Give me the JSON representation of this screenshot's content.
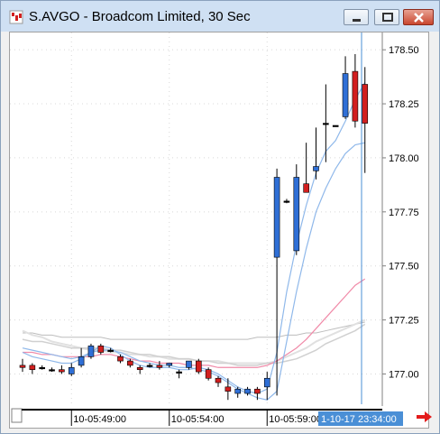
{
  "window": {
    "title": "S.AVGO - Broadcom Limited, 30 Sec",
    "minimize": "minimize",
    "restore": "restore",
    "close": "close"
  },
  "chart_data": {
    "type": "candlestick",
    "title": "S.AVGO - Broadcom Limited, 30 Sec",
    "y_ticks": [
      "178.50",
      "178.25",
      "178.00",
      "177.75",
      "177.50",
      "177.25",
      "177.00"
    ],
    "y_tick_values": [
      178.5,
      178.25,
      178.0,
      177.75,
      177.5,
      177.25,
      177.0
    ],
    "ylim": [
      176.86,
      178.58
    ],
    "x_ticks": [
      "10-05:49:00",
      "10-05:54:00",
      "10-05:59:00"
    ],
    "x_tick_index": [
      5,
      15,
      25
    ],
    "cursor_label": "1-10-17 23:34:00",
    "grid": true,
    "colors": {
      "up": "#2f6fd6",
      "down": "#d21f1f",
      "flat": "#000000",
      "ma_light_blue": "#8fb8ea",
      "ma_pink": "#f08aa8",
      "ma_gray": "#bdbdbd",
      "cursor": "#4a8fd6",
      "cursor_label_bg": "#4a8fd6"
    },
    "candles": [
      {
        "o": 177.04,
        "h": 177.07,
        "l": 177.01,
        "c": 177.03
      },
      {
        "o": 177.04,
        "h": 177.05,
        "l": 177.0,
        "c": 177.02
      },
      {
        "o": 177.03,
        "h": 177.04,
        "l": 177.02,
        "c": 177.03
      },
      {
        "o": 177.02,
        "h": 177.03,
        "l": 177.01,
        "c": 177.02
      },
      {
        "o": 177.02,
        "h": 177.04,
        "l": 177.0,
        "c": 177.01
      },
      {
        "o": 177.0,
        "h": 177.05,
        "l": 176.99,
        "c": 177.03
      },
      {
        "o": 177.04,
        "h": 177.12,
        "l": 177.03,
        "c": 177.08
      },
      {
        "o": 177.08,
        "h": 177.14,
        "l": 177.07,
        "c": 177.13
      },
      {
        "o": 177.13,
        "h": 177.14,
        "l": 177.09,
        "c": 177.1
      },
      {
        "o": 177.11,
        "h": 177.12,
        "l": 177.1,
        "c": 177.11
      },
      {
        "o": 177.08,
        "h": 177.09,
        "l": 177.05,
        "c": 177.06
      },
      {
        "o": 177.06,
        "h": 177.07,
        "l": 177.03,
        "c": 177.04
      },
      {
        "o": 177.03,
        "h": 177.04,
        "l": 177.0,
        "c": 177.02
      },
      {
        "o": 177.04,
        "h": 177.05,
        "l": 177.03,
        "c": 177.04
      },
      {
        "o": 177.04,
        "h": 177.06,
        "l": 177.02,
        "c": 177.03
      },
      {
        "o": 177.04,
        "h": 177.05,
        "l": 177.03,
        "c": 177.05
      },
      {
        "o": 177.01,
        "h": 177.02,
        "l": 176.98,
        "c": 177.01
      },
      {
        "o": 177.03,
        "h": 177.06,
        "l": 177.02,
        "c": 177.06
      },
      {
        "o": 177.06,
        "h": 177.07,
        "l": 177.0,
        "c": 177.01
      },
      {
        "o": 177.02,
        "h": 177.03,
        "l": 176.97,
        "c": 176.98
      },
      {
        "o": 176.98,
        "h": 176.99,
        "l": 176.94,
        "c": 176.96
      },
      {
        "o": 176.94,
        "h": 176.98,
        "l": 176.88,
        "c": 176.92
      },
      {
        "o": 176.91,
        "h": 176.94,
        "l": 176.89,
        "c": 176.93
      },
      {
        "o": 176.91,
        "h": 176.94,
        "l": 176.9,
        "c": 176.93
      },
      {
        "o": 176.93,
        "h": 176.94,
        "l": 176.88,
        "c": 176.91
      },
      {
        "o": 176.94,
        "h": 177.01,
        "l": 176.88,
        "c": 176.98
      },
      {
        "o": 177.54,
        "h": 177.95,
        "l": 176.9,
        "c": 177.91
      },
      {
        "o": 177.8,
        "h": 177.81,
        "l": 177.79,
        "c": 177.8
      },
      {
        "o": 177.57,
        "h": 177.97,
        "l": 177.55,
        "c": 177.91
      },
      {
        "o": 177.88,
        "h": 178.07,
        "l": 177.84,
        "c": 177.84
      },
      {
        "o": 177.94,
        "h": 178.14,
        "l": 177.9,
        "c": 177.96
      },
      {
        "o": 178.16,
        "h": 178.34,
        "l": 177.98,
        "c": 178.16
      },
      {
        "o": 178.15,
        "h": 178.15,
        "l": 178.15,
        "c": 178.15
      },
      {
        "o": 178.19,
        "h": 178.47,
        "l": 178.18,
        "c": 178.39
      },
      {
        "o": 178.4,
        "h": 178.48,
        "l": 178.14,
        "c": 178.17
      },
      {
        "o": 178.34,
        "h": 178.42,
        "l": 177.93,
        "c": 178.16
      }
    ],
    "ma_light_blue_1": [
      177.1,
      177.08,
      177.07,
      177.06,
      177.05,
      177.05,
      177.07,
      177.1,
      177.13,
      177.12,
      177.09,
      177.06,
      177.04,
      177.03,
      177.03,
      177.03,
      177.02,
      177.02,
      177.03,
      177.02,
      177.0,
      176.97,
      176.94,
      176.92,
      176.91,
      176.93,
      177.1,
      177.38,
      177.6,
      177.78,
      177.93,
      178.03,
      178.08,
      178.17,
      178.27,
      178.35
    ],
    "ma_light_blue_2": [
      177.12,
      177.11,
      177.1,
      177.09,
      177.08,
      177.07,
      177.08,
      177.1,
      177.11,
      177.11,
      177.1,
      177.08,
      177.06,
      177.05,
      177.04,
      177.04,
      177.03,
      177.03,
      177.02,
      177.01,
      176.99,
      176.96,
      176.93,
      176.91,
      176.89,
      176.88,
      176.92,
      177.15,
      177.38,
      177.58,
      177.75,
      177.86,
      177.95,
      178.02,
      178.06,
      178.07
    ],
    "ma_pink": [
      177.1,
      177.1,
      177.09,
      177.09,
      177.08,
      177.08,
      177.08,
      177.08,
      177.09,
      177.09,
      177.08,
      177.07,
      177.06,
      177.06,
      177.05,
      177.05,
      177.05,
      177.04,
      177.04,
      177.04,
      177.03,
      177.03,
      177.03,
      177.03,
      177.03,
      177.04,
      177.06,
      177.09,
      177.12,
      177.16,
      177.21,
      177.26,
      177.31,
      177.36,
      177.41,
      177.44
    ],
    "ma_gray_1": [
      177.2,
      177.18,
      177.17,
      177.15,
      177.14,
      177.13,
      177.12,
      177.11,
      177.11,
      177.1,
      177.1,
      177.09,
      177.09,
      177.08,
      177.08,
      177.07,
      177.07,
      177.07,
      177.06,
      177.06,
      177.06,
      177.05,
      177.05,
      177.05,
      177.05,
      177.05,
      177.06,
      177.08,
      177.1,
      177.12,
      177.15,
      177.17,
      177.19,
      177.21,
      177.23,
      177.25
    ],
    "ma_gray_2": [
      177.19,
      177.19,
      177.18,
      177.18,
      177.17,
      177.17,
      177.17,
      177.17,
      177.17,
      177.16,
      177.16,
      177.16,
      177.16,
      177.16,
      177.16,
      177.16,
      177.16,
      177.16,
      177.16,
      177.16,
      177.16,
      177.16,
      177.16,
      177.16,
      177.17,
      177.17,
      177.17,
      177.18,
      177.18,
      177.19,
      177.19,
      177.2,
      177.21,
      177.22,
      177.23,
      177.24
    ],
    "ma_gray_3": [
      177.16,
      177.15,
      177.15,
      177.14,
      177.13,
      177.12,
      177.12,
      177.12,
      177.12,
      177.11,
      177.11,
      177.1,
      177.09,
      177.09,
      177.08,
      177.08,
      177.07,
      177.07,
      177.06,
      177.06,
      177.05,
      177.05,
      177.04,
      177.04,
      177.04,
      177.05,
      177.05,
      177.06,
      177.07,
      177.09,
      177.11,
      177.14,
      177.16,
      177.18,
      177.2,
      177.23
    ]
  }
}
